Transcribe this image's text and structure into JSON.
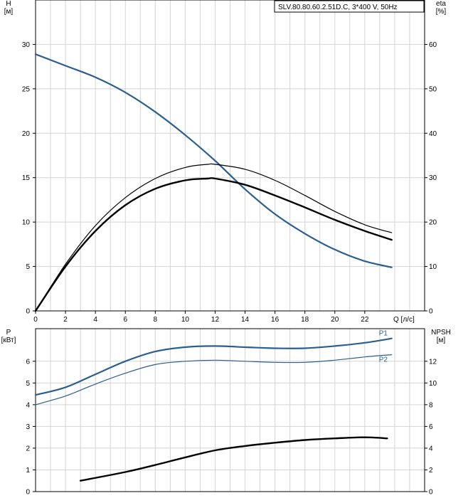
{
  "model_label": "SLV.80.80.60.2.51D.C, 3*400 V, 50Hz",
  "chart_data": [
    {
      "type": "line",
      "name": "pump-curve",
      "xlabel": "Q [л/с]",
      "xlim": [
        0,
        26
      ],
      "x_ticks": [
        0,
        2,
        4,
        6,
        8,
        10,
        12,
        14,
        16,
        18,
        20,
        22
      ],
      "ylabel_left": "H\n[м]",
      "ylim_left": [
        0,
        35
      ],
      "y_ticks_left": [
        0,
        5,
        10,
        15,
        20,
        25,
        30
      ],
      "ylabel_right": "eta\n[%]",
      "ylim_right": [
        0,
        70
      ],
      "y_ticks_right": [
        0,
        10,
        20,
        30,
        40,
        50,
        60
      ],
      "grid": true,
      "series": [
        {
          "axis": "left",
          "color": "#2b5f91",
          "width": 2.2,
          "points": [
            [
              0,
              28.9
            ],
            [
              2,
              27.6
            ],
            [
              4,
              26.3
            ],
            [
              6,
              24.6
            ],
            [
              8,
              22.4
            ],
            [
              10,
              19.8
            ],
            [
              12,
              16.9
            ],
            [
              14,
              13.7
            ],
            [
              16,
              10.9
            ],
            [
              18,
              8.7
            ],
            [
              20,
              6.9
            ],
            [
              22,
              5.6
            ],
            [
              23.8,
              4.9
            ]
          ]
        },
        {
          "axis": "right",
          "color": "#000000",
          "width": 1.2,
          "points": [
            [
              0,
              0
            ],
            [
              2,
              10.5
            ],
            [
              4,
              19.2
            ],
            [
              6,
              25.5
            ],
            [
              8,
              29.8
            ],
            [
              10,
              32.3
            ],
            [
              11.5,
              33
            ],
            [
              12,
              33
            ],
            [
              14,
              31.9
            ],
            [
              16,
              29.4
            ],
            [
              18,
              26.0
            ],
            [
              20,
              22.4
            ],
            [
              22,
              19.4
            ],
            [
              23.8,
              17.6
            ]
          ]
        },
        {
          "axis": "right",
          "color": "#000000",
          "width": 2.4,
          "points": [
            [
              0,
              0
            ],
            [
              2,
              10.0
            ],
            [
              4,
              18.0
            ],
            [
              6,
              23.8
            ],
            [
              8,
              27.5
            ],
            [
              10,
              29.4
            ],
            [
              11.5,
              29.8
            ],
            [
              12,
              29.8
            ],
            [
              14,
              28.4
            ],
            [
              16,
              26.0
            ],
            [
              18,
              23.3
            ],
            [
              20,
              20.5
            ],
            [
              22,
              18.0
            ],
            [
              23.8,
              16.0
            ]
          ]
        }
      ]
    },
    {
      "type": "line",
      "name": "power-npsh",
      "xlim": [
        0,
        26
      ],
      "ylabel_left": "P\n[кВт]",
      "ylim_left": [
        0,
        7.5
      ],
      "y_ticks_left": [
        0,
        1,
        2,
        3,
        4,
        5,
        6
      ],
      "ylabel_right": "NPSH\n[м]",
      "ylim_right": [
        0,
        15
      ],
      "y_ticks_right": [
        0,
        2,
        4,
        6,
        8,
        10,
        12
      ],
      "grid": true,
      "series": [
        {
          "name": "P1",
          "axis": "left",
          "color": "#2b5f91",
          "width": 2.2,
          "points": [
            [
              0,
              4.45
            ],
            [
              2,
              4.8
            ],
            [
              4,
              5.4
            ],
            [
              6,
              6.0
            ],
            [
              8,
              6.45
            ],
            [
              10,
              6.65
            ],
            [
              12,
              6.7
            ],
            [
              14,
              6.65
            ],
            [
              16,
              6.6
            ],
            [
              18,
              6.6
            ],
            [
              20,
              6.7
            ],
            [
              22,
              6.85
            ],
            [
              23.8,
              7.05
            ]
          ]
        },
        {
          "name": "P2",
          "axis": "left",
          "color": "#2b5f91",
          "width": 1.2,
          "points": [
            [
              0,
              4.0
            ],
            [
              2,
              4.4
            ],
            [
              4,
              4.95
            ],
            [
              6,
              5.45
            ],
            [
              8,
              5.85
            ],
            [
              10,
              6.0
            ],
            [
              12,
              6.05
            ],
            [
              14,
              6.0
            ],
            [
              16,
              5.95
            ],
            [
              18,
              5.95
            ],
            [
              20,
              6.05
            ],
            [
              22,
              6.2
            ],
            [
              23.8,
              6.3
            ]
          ]
        },
        {
          "axis": "right",
          "color": "#000000",
          "width": 2.4,
          "points": [
            [
              3,
              1.0
            ],
            [
              6,
              1.8
            ],
            [
              8,
              2.45
            ],
            [
              10,
              3.15
            ],
            [
              12,
              3.8
            ],
            [
              14,
              4.2
            ],
            [
              16,
              4.5
            ],
            [
              18,
              4.75
            ],
            [
              20,
              4.9
            ],
            [
              22,
              5.0
            ],
            [
              23.5,
              4.9
            ]
          ]
        }
      ]
    }
  ]
}
